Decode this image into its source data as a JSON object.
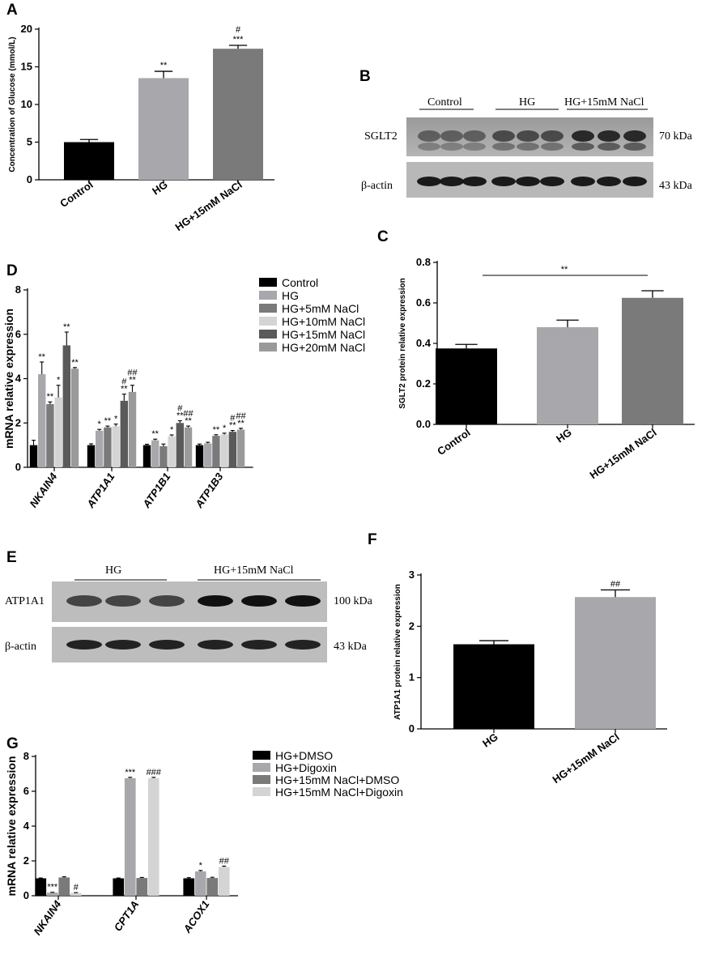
{
  "chart_data": [
    {
      "panel": "A",
      "type": "bar",
      "categories": [
        "Control",
        "HG",
        "HG+15mM NaCl"
      ],
      "values": [
        5.0,
        13.5,
        17.4
      ],
      "errors": [
        0.35,
        0.9,
        0.45
      ],
      "significance": [
        "",
        "**",
        "***"
      ],
      "significance2": [
        "",
        "",
        "#"
      ],
      "colors": [
        "#000000",
        "#a8a8ac",
        "#7a7a7a"
      ],
      "xlabel": "",
      "ylabel": "Concentration of Glucose (mmol/L)",
      "ylim": [
        0,
        20
      ],
      "yticks": [
        0,
        5,
        10,
        15,
        20
      ]
    },
    {
      "panel": "C",
      "type": "bar",
      "categories": [
        "Control",
        "HG",
        "HG+15mM NaCl"
      ],
      "values": [
        0.375,
        0.48,
        0.625
      ],
      "errors": [
        0.02,
        0.035,
        0.035
      ],
      "colors": [
        "#000000",
        "#a8a8ac",
        "#7a7a7a"
      ],
      "bracket": {
        "from": "Control",
        "to": "HG+15mM NaCl",
        "label": "**"
      },
      "ylabel": "SGLT2 protein relative expression",
      "ylim": [
        0,
        0.8
      ],
      "yticks": [
        "0.0",
        "0.2",
        "0.4",
        "0.6",
        "0.8"
      ]
    },
    {
      "panel": "D",
      "type": "bar",
      "categories": [
        "NKAIN4",
        "ATP1A1",
        "ATP1B1",
        "ATP1B3"
      ],
      "ylabel": "mRNA relative expression",
      "ylim": [
        0,
        8
      ],
      "yticks": [
        0,
        2,
        4,
        6,
        8
      ],
      "legend": "right",
      "series": [
        {
          "name": "Control",
          "color": "#000000",
          "values": [
            1.0,
            1.0,
            1.0,
            1.0
          ],
          "errors": [
            0.22,
            0.06,
            0.04,
            0.05
          ],
          "sig": [
            "",
            "",
            "",
            ""
          ],
          "sig2": [
            "",
            "",
            "",
            ""
          ]
        },
        {
          "name": "HG",
          "color": "#a8a8ac",
          "values": [
            4.2,
            1.65,
            1.22,
            1.08
          ],
          "errors": [
            0.55,
            0.06,
            0.05,
            0.05
          ],
          "sig": [
            "**",
            "*",
            "**",
            ""
          ],
          "sig2": [
            "",
            "",
            "",
            ""
          ]
        },
        {
          "name": "HG+5mM NaCl",
          "color": "#7a7a7a",
          "values": [
            2.85,
            1.8,
            0.95,
            1.42
          ],
          "errors": [
            0.1,
            0.06,
            0.1,
            0.05
          ],
          "sig": [
            "**",
            "**",
            "",
            "**"
          ],
          "sig2": [
            "",
            "",
            "",
            ""
          ]
        },
        {
          "name": "HG+10mM NaCl",
          "color": "#d4d4d4",
          "values": [
            3.15,
            1.85,
            1.4,
            1.48
          ],
          "errors": [
            0.55,
            0.1,
            0.06,
            0.06
          ],
          "sig": [
            "*",
            "*",
            "*",
            "*"
          ],
          "sig2": [
            "",
            "",
            "",
            ""
          ]
        },
        {
          "name": "HG+15mM NaCl",
          "color": "#5a5a5a",
          "values": [
            5.5,
            3.0,
            2.0,
            1.6
          ],
          "errors": [
            0.6,
            0.3,
            0.1,
            0.06
          ],
          "sig": [
            "**",
            "**",
            "**",
            "**"
          ],
          "sig2": [
            "",
            "#",
            "#",
            "#"
          ]
        },
        {
          "name": "HG+20mM NaCl",
          "color": "#9a9a9a",
          "values": [
            4.45,
            3.4,
            1.8,
            1.7
          ],
          "errors": [
            0.05,
            0.3,
            0.06,
            0.06
          ],
          "sig": [
            "**",
            "**",
            "**",
            "**"
          ],
          "sig2": [
            "",
            "##",
            "##",
            "##"
          ]
        }
      ]
    },
    {
      "panel": "F",
      "type": "bar",
      "categories": [
        "HG",
        "HG+15mM NaCl"
      ],
      "values": [
        1.65,
        2.57
      ],
      "errors": [
        0.07,
        0.14
      ],
      "significance": [
        "",
        "##"
      ],
      "colors": [
        "#000000",
        "#a8a8ac"
      ],
      "ylabel": "ATP1A1 protein relative expression",
      "ylim": [
        0,
        3
      ],
      "yticks": [
        0,
        1,
        2,
        3
      ]
    },
    {
      "panel": "G",
      "type": "bar",
      "categories": [
        "NKAIN4",
        "CPT1A",
        "ACOX1"
      ],
      "ylabel": "mRNA relative expression",
      "ylim": [
        0,
        8
      ],
      "yticks": [
        0,
        2,
        4,
        6,
        8
      ],
      "legend": "right",
      "series": [
        {
          "name": "HG+DMSO",
          "color": "#000000",
          "values": [
            1.0,
            1.0,
            1.0
          ],
          "errors": [
            0.02,
            0.02,
            0.04
          ],
          "sig": [
            "",
            "",
            ""
          ]
        },
        {
          "name": "HG+Digoxin",
          "color": "#a8a8ac",
          "values": [
            0.18,
            6.75,
            1.4
          ],
          "errors": [
            0.02,
            0.05,
            0.05
          ],
          "sig": [
            "***",
            "***",
            "*"
          ]
        },
        {
          "name": "HG+15mM NaCl+DMSO",
          "color": "#7a7a7a",
          "values": [
            1.05,
            1.02,
            1.02
          ],
          "errors": [
            0.04,
            0.03,
            0.04
          ],
          "sig": [
            "",
            "",
            ""
          ]
        },
        {
          "name": "HG+15mM NaCl+Digoxin",
          "color": "#d4d4d4",
          "values": [
            0.16,
            6.75,
            1.65
          ],
          "errors": [
            0.02,
            0.05,
            0.05
          ],
          "sig": [
            "#",
            "###",
            "##"
          ]
        }
      ]
    }
  ],
  "panel_letters": {
    "A": "A",
    "B": "B",
    "C": "C",
    "D": "D",
    "E": "E",
    "F": "F",
    "G": "G"
  },
  "blot_b": {
    "groups": [
      "Control",
      "HG",
      "HG+15mM NaCl"
    ],
    "rows": [
      {
        "name": "SGLT2",
        "size": "70 kDa"
      },
      {
        "name": "β-actin",
        "size": "43 kDa"
      }
    ]
  },
  "blot_e": {
    "groups": [
      "HG",
      "HG+15mM NaCl"
    ],
    "rows": [
      {
        "name": "ATP1A1",
        "size": "100 kDa"
      },
      {
        "name": "β-actin",
        "size": "43 kDa"
      }
    ]
  }
}
